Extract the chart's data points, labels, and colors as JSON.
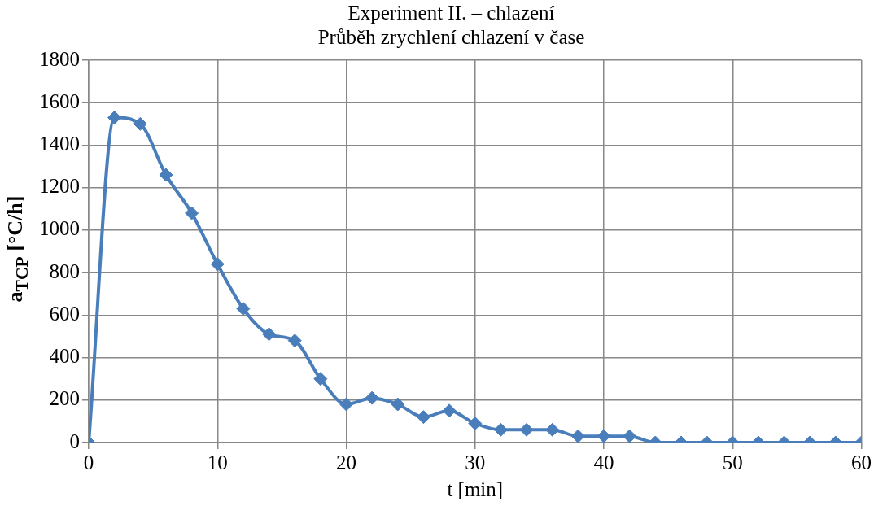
{
  "chart_data": {
    "type": "line",
    "title": "Experiment II. – chlazení",
    "subtitle": "Průběh zrychlení chlazení v čase",
    "xlabel": "t [min]",
    "ylabel": "a$_{TCP}$ [°C/h]",
    "x": [
      0,
      2,
      4,
      6,
      8,
      10,
      12,
      14,
      16,
      18,
      20,
      22,
      24,
      26,
      28,
      30,
      32,
      34,
      36,
      38,
      40,
      42,
      44,
      46,
      48,
      50,
      52,
      54,
      56,
      58,
      60
    ],
    "series": [
      {
        "color": "#4a7ebb",
        "values": [
          0,
          1530,
          1500,
          1260,
          1080,
          840,
          630,
          510,
          480,
          300,
          180,
          210,
          180,
          120,
          150,
          90,
          60,
          60,
          60,
          30,
          30,
          30,
          0,
          0,
          0,
          0,
          0,
          0,
          0,
          0,
          0
        ]
      }
    ],
    "xlim": [
      0,
      60
    ],
    "xticks": [
      0,
      10,
      20,
      30,
      40,
      50,
      60
    ],
    "ylim": [
      0,
      1800
    ],
    "yticks": [
      0,
      200,
      400,
      600,
      800,
      1000,
      1200,
      1400,
      1600,
      1800
    ],
    "grid": true,
    "legend": false,
    "marker": "diamond",
    "line_style": "solid"
  }
}
